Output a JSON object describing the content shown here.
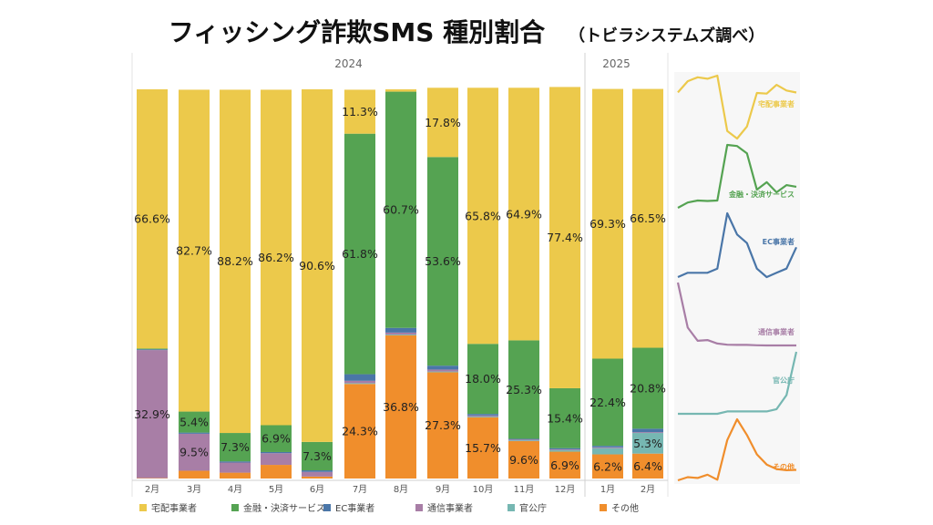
{
  "title": "フィッシング詐欺SMS 種別割合",
  "subtitle": "（トビラシステムズ調べ）",
  "colors": {
    "宅配事業者": "#ecc94b",
    "金融・決済サービス": "#55a352",
    "EC事業者": "#4a76a8",
    "通信事業者": "#a87ea6",
    "官公庁": "#76b7b2",
    "その他": "#f08e2c"
  },
  "chart_data": {
    "type": "bar",
    "stacked": true,
    "normalized": true,
    "year_groups": [
      {
        "label": "2024",
        "months": [
          "2月",
          "3月",
          "4月",
          "5月",
          "6月",
          "7月",
          "8月",
          "9月",
          "10月",
          "11月",
          "12月"
        ]
      },
      {
        "label": "2025",
        "months": [
          "1月",
          "2月"
        ]
      }
    ],
    "categories": [
      "2月",
      "3月",
      "4月",
      "5月",
      "6月",
      "7月",
      "8月",
      "9月",
      "10月",
      "11月",
      "12月",
      "1月",
      "2月"
    ],
    "series": [
      {
        "name": "その他",
        "values": [
          0.1,
          2.0,
          1.5,
          3.5,
          0.5,
          24.3,
          36.8,
          27.3,
          15.7,
          9.6,
          6.9,
          6.2,
          6.4
        ]
      },
      {
        "name": "官公庁",
        "values": [
          0.0,
          0.0,
          0.0,
          0.0,
          0.0,
          0.2,
          0.2,
          0.2,
          0.2,
          0.2,
          0.4,
          1.6,
          5.3
        ]
      },
      {
        "name": "通信事業者",
        "values": [
          32.9,
          9.5,
          2.6,
          3.0,
          1.2,
          0.6,
          0.5,
          0.5,
          0.3,
          0.2,
          0.2,
          0.2,
          0.2
        ]
      },
      {
        "name": "EC事業者",
        "values": [
          0.2,
          0.3,
          0.3,
          0.3,
          0.4,
          1.7,
          1.2,
          1.0,
          0.4,
          0.2,
          0.3,
          0.4,
          0.9
        ]
      },
      {
        "name": "金融・決済サービス",
        "values": [
          0.2,
          5.4,
          7.3,
          6.9,
          7.3,
          61.8,
          60.7,
          53.6,
          18.0,
          25.3,
          15.4,
          22.4,
          20.8
        ]
      },
      {
        "name": "宅配事業者",
        "values": [
          66.6,
          82.7,
          88.2,
          86.2,
          90.6,
          11.3,
          0.6,
          17.8,
          65.8,
          64.9,
          77.4,
          69.3,
          66.5
        ]
      }
    ],
    "data_labels": {
      "その他": [
        "",
        "",
        "",
        "",
        "",
        "24.3%",
        "36.8%",
        "27.3%",
        "15.7%",
        "9.6%",
        "6.9%",
        "6.2%",
        "6.4%"
      ],
      "官公庁": [
        "",
        "",
        "",
        "",
        "",
        "",
        "",
        "",
        "",
        "",
        "",
        "",
        "5.3%"
      ],
      "通信事業者": [
        "32.9%",
        "9.5%",
        "",
        "",
        "",
        "",
        "",
        "",
        "",
        "",
        "",
        "",
        ""
      ],
      "EC事業者": [
        "",
        "",
        "",
        "",
        "",
        "",
        "",
        "",
        "",
        "",
        "",
        "",
        ""
      ],
      "金融・決済サービス": [
        "",
        "5.4%",
        "7.3%",
        "6.9%",
        "7.3%",
        "61.8%",
        "60.7%",
        "53.6%",
        "18.0%",
        "25.3%",
        "15.4%",
        "22.4%",
        "20.8%"
      ],
      "宅配事業者": [
        "66.6%",
        "82.7%",
        "88.2%",
        "86.2%",
        "90.6%",
        "11.3%",
        "",
        "17.8%",
        "65.8%",
        "64.9%",
        "77.4%",
        "69.3%",
        "66.5%"
      ]
    },
    "legend": [
      "宅配事業者",
      "金融・決済サービス",
      "EC事業者",
      "通信事業者",
      "官公庁",
      "その他"
    ],
    "legend_position": "bottom",
    "sparklines": [
      {
        "name": "宅配事業者",
        "label": "宅配事業者"
      },
      {
        "name": "金融・決済サービス",
        "label": "金融・決済サービス"
      },
      {
        "name": "EC事業者",
        "label": "EC事業者"
      },
      {
        "name": "通信事業者",
        "label": "通信事業者"
      },
      {
        "name": "官公庁",
        "label": "官公庁"
      },
      {
        "name": "その他",
        "label": "その他"
      }
    ]
  }
}
